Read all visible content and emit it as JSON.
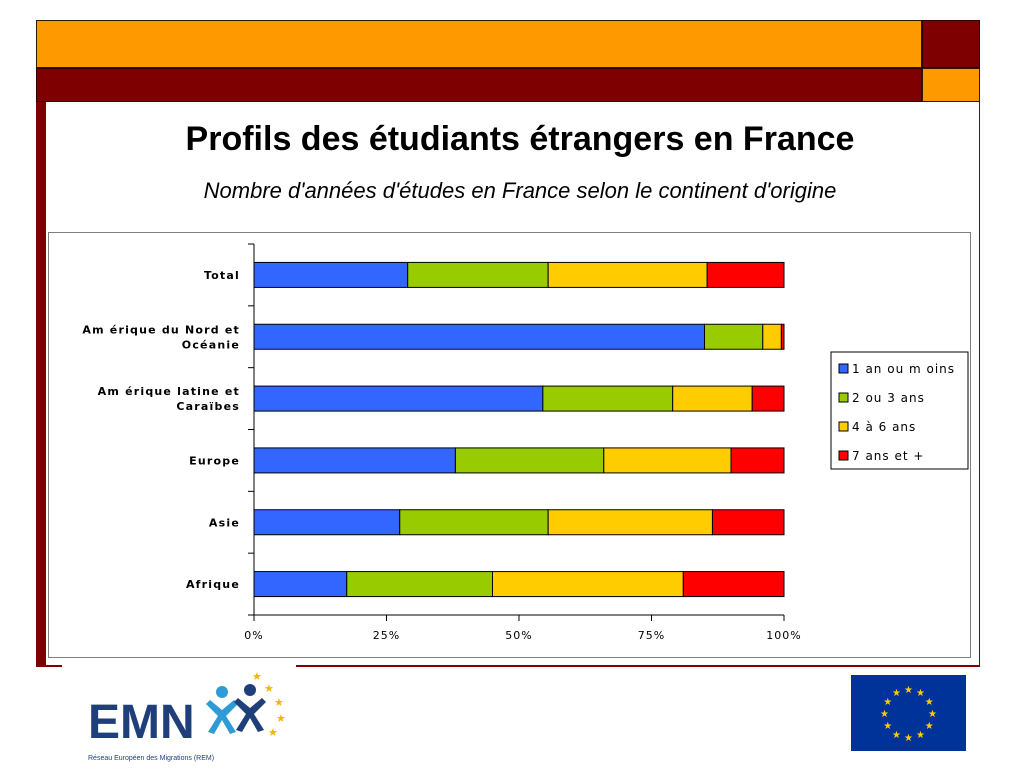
{
  "slide": {
    "title": "Profils des étudiants étrangers en France",
    "subtitle": "Nombre d'années d'études en France selon le continent d'origine",
    "accent_orange": "#ff9900",
    "accent_dark": "#7f0000"
  },
  "logos": {
    "emn_text": "EMN",
    "emn_caption": "Réseau Européen des Migrations (REM)"
  },
  "chart_data": {
    "type": "bar",
    "orientation": "horizontal",
    "stacked": true,
    "normalized": true,
    "categories": [
      "Total",
      "Amérique du Nord et Océanie",
      "Amérique latine et Caraïbes",
      "Europe",
      "Asie",
      "Afrique"
    ],
    "category_labels": [
      [
        "Total"
      ],
      [
        "Am érique du Nord et",
        "Océanie"
      ],
      [
        "Am érique latine et",
        "Caraïbes"
      ],
      [
        "Europe"
      ],
      [
        "Asie"
      ],
      [
        "Afrique"
      ]
    ],
    "series": [
      {
        "name": "1 an ou m oins",
        "color": "#3366ff",
        "values": [
          29,
          85,
          54.5,
          38,
          27.5,
          17.5
        ]
      },
      {
        "name": "2 ou 3 ans",
        "color": "#99cc00",
        "values": [
          26.5,
          11,
          24.5,
          28,
          28,
          27.5
        ]
      },
      {
        "name": "4 à 6 ans",
        "color": "#ffcc00",
        "values": [
          30,
          3.5,
          15,
          24,
          31,
          36
        ]
      },
      {
        "name": "7 ans et +",
        "color": "#ff0000",
        "values": [
          14.5,
          0.5,
          6,
          10,
          13.5,
          19
        ]
      }
    ],
    "xlim": [
      0,
      100
    ],
    "xticks": [
      "0%",
      "25%",
      "50%",
      "75%",
      "100%"
    ],
    "xlabel": "",
    "ylabel": "",
    "legend_position": "right",
    "grid": false
  }
}
